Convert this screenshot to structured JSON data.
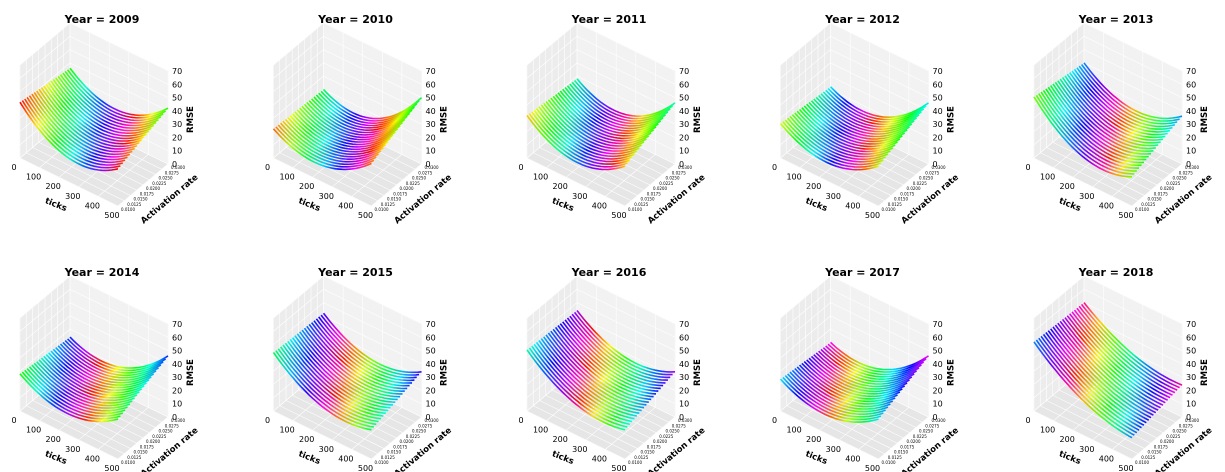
{
  "figure": {
    "rows": 2,
    "cols": 5
  },
  "chart_data": [
    {
      "type": "surface3d",
      "title": "Year = 2009",
      "xlabel": "ticks",
      "ylabel": "Activation rate",
      "zlabel": "RMSE",
      "xticks": [
        "0",
        "100",
        "200",
        "300",
        "400",
        "500"
      ],
      "yticks": [
        "0.0100",
        "0.0125",
        "0.0150",
        "0.0175",
        "0.0200",
        "0.0225",
        "0.0250",
        "0.0275",
        "0.0300"
      ],
      "zticks": [
        "0",
        "10",
        "20",
        "30",
        "40",
        "50",
        "60",
        "70"
      ],
      "xlim": [
        0,
        500
      ],
      "ylim": [
        0.01,
        0.03
      ],
      "zlim": [
        0,
        70
      ],
      "grid": true,
      "colormap": "hsv",
      "rmse_at_ticks_0": {
        "rate_0.0100": 42,
        "rate_0.0300": 36
      },
      "rmse_at_ticks_200": 20,
      "rmse_at_ticks_500": {
        "rate_0.0100": 28,
        "rate_0.0300": 42
      }
    },
    {
      "type": "surface3d",
      "title": "Year = 2010",
      "xlabel": "ticks",
      "ylabel": "Activation rate",
      "zlabel": "RMSE",
      "xticks": [
        "0",
        "100",
        "200",
        "300",
        "400",
        "500"
      ],
      "yticks": [
        "0.0100",
        "0.0125",
        "0.0150",
        "0.0175",
        "0.0200",
        "0.0225",
        "0.0250",
        "0.0275",
        "0.0300"
      ],
      "zticks": [
        "0",
        "10",
        "20",
        "30",
        "40",
        "50",
        "60",
        "70"
      ],
      "xlim": [
        0,
        500
      ],
      "ylim": [
        0.01,
        0.03
      ],
      "zlim": [
        0,
        70
      ],
      "grid": true,
      "colormap": "hsv",
      "rmse_at_ticks_0": {
        "rate_0.0100": 22,
        "rate_0.0300": 20
      },
      "rmse_at_ticks_200": 12,
      "rmse_at_ticks_500": {
        "rate_0.0100": 32,
        "rate_0.0300": 50
      }
    },
    {
      "type": "surface3d",
      "title": "Year = 2011",
      "xlabel": "ticks",
      "ylabel": "Activation rate",
      "zlabel": "RMSE",
      "xticks": [
        "0",
        "100",
        "200",
        "300",
        "400",
        "500"
      ],
      "yticks": [
        "0.0100",
        "0.0125",
        "0.0150",
        "0.0175",
        "0.0200",
        "0.0225",
        "0.0250",
        "0.0275",
        "0.0300"
      ],
      "zticks": [
        "0",
        "10",
        "20",
        "30",
        "40",
        "50",
        "60",
        "70"
      ],
      "xlim": [
        0,
        500
      ],
      "ylim": [
        0.01,
        0.03
      ],
      "zlim": [
        0,
        70
      ],
      "grid": true,
      "colormap": "hsv",
      "rmse_at_ticks_0": {
        "rate_0.0100": 32,
        "rate_0.0300": 28
      },
      "rmse_at_ticks_200": 16,
      "rmse_at_ticks_500": {
        "rate_0.0100": 30,
        "rate_0.0300": 46
      }
    },
    {
      "type": "surface3d",
      "title": "Year = 2012",
      "xlabel": "ticks",
      "ylabel": "Activation rate",
      "zlabel": "RMSE",
      "xticks": [
        "0",
        "100",
        "200",
        "300",
        "400",
        "500"
      ],
      "yticks": [
        "0.0100",
        "0.0125",
        "0.0150",
        "0.0175",
        "0.0200",
        "0.0225",
        "0.0250",
        "0.0275",
        "0.0300"
      ],
      "zticks": [
        "0",
        "10",
        "20",
        "30",
        "40",
        "50",
        "60",
        "70"
      ],
      "xlim": [
        0,
        500
      ],
      "ylim": [
        0.01,
        0.03
      ],
      "zlim": [
        0,
        70
      ],
      "grid": true,
      "colormap": "hsv",
      "rmse_at_ticks_0": {
        "rate_0.0100": 26,
        "rate_0.0300": 22
      },
      "rmse_at_ticks_200": 14,
      "rmse_at_ticks_500": {
        "rate_0.0100": 30,
        "rate_0.0300": 46
      }
    },
    {
      "type": "surface3d",
      "title": "Year = 2013",
      "xlabel": "ticks",
      "ylabel": "Activation rate",
      "zlabel": "RMSE",
      "xticks": [
        "0",
        "100",
        "200",
        "300",
        "400",
        "500"
      ],
      "yticks": [
        "0.0100",
        "0.0125",
        "0.0150",
        "0.0175",
        "0.0200",
        "0.0225",
        "0.0250",
        "0.0275",
        "0.0300"
      ],
      "zticks": [
        "0",
        "10",
        "20",
        "30",
        "40",
        "50",
        "60",
        "70"
      ],
      "xlim": [
        0,
        500
      ],
      "ylim": [
        0.01,
        0.03
      ],
      "zlim": [
        0,
        70
      ],
      "grid": true,
      "colormap": "hsv",
      "rmse_at_ticks_0": {
        "rate_0.0100": 46,
        "rate_0.0300": 40
      },
      "rmse_at_ticks_200": 22,
      "rmse_at_ticks_500": {
        "rate_0.0100": 22,
        "rate_0.0300": 36
      }
    },
    {
      "type": "surface3d",
      "title": "Year = 2014",
      "xlabel": "ticks",
      "ylabel": "Activation rate",
      "zlabel": "RMSE",
      "xticks": [
        "0",
        "100",
        "200",
        "300",
        "400",
        "500"
      ],
      "yticks": [
        "0.0100",
        "0.0125",
        "0.0150",
        "0.0175",
        "0.0200",
        "0.0225",
        "0.0250",
        "0.0275",
        "0.0300"
      ],
      "zticks": [
        "0",
        "10",
        "20",
        "30",
        "40",
        "50",
        "60",
        "70"
      ],
      "xlim": [
        0,
        500
      ],
      "ylim": [
        0.01,
        0.03
      ],
      "zlim": [
        0,
        70
      ],
      "grid": true,
      "colormap": "hsv",
      "rmse_at_ticks_0": {
        "rate_0.0100": 28,
        "rate_0.0300": 24
      },
      "rmse_at_ticks_200": 16,
      "rmse_at_ticks_500": {
        "rate_0.0100": 30,
        "rate_0.0300": 46
      }
    },
    {
      "type": "surface3d",
      "title": "Year = 2015",
      "xlabel": "ticks",
      "ylabel": "Activation rate",
      "zlabel": "RMSE",
      "xticks": [
        "0",
        "100",
        "200",
        "300",
        "400",
        "500"
      ],
      "yticks": [
        "0.0100",
        "0.0125",
        "0.0150",
        "0.0175",
        "0.0200",
        "0.0225",
        "0.0250",
        "0.0275",
        "0.0300"
      ],
      "zticks": [
        "0",
        "10",
        "20",
        "30",
        "40",
        "50",
        "60",
        "70"
      ],
      "xlim": [
        0,
        500
      ],
      "ylim": [
        0.01,
        0.03
      ],
      "zlim": [
        0,
        70
      ],
      "grid": true,
      "colormap": "hsv",
      "rmse_at_ticks_0": {
        "rate_0.0100": 44,
        "rate_0.0300": 42
      },
      "rmse_at_ticks_200": 24,
      "rmse_at_ticks_500": {
        "rate_0.0100": 22,
        "rate_0.0300": 34
      }
    },
    {
      "type": "surface3d",
      "title": "Year = 2016",
      "xlabel": "ticks",
      "ylabel": "Activation rate",
      "zlabel": "RMSE",
      "xticks": [
        "0",
        "100",
        "200",
        "300",
        "400",
        "500"
      ],
      "yticks": [
        "0.0100",
        "0.0125",
        "0.0150",
        "0.0175",
        "0.0200",
        "0.0225",
        "0.0250",
        "0.0275",
        "0.0300"
      ],
      "zticks": [
        "0",
        "10",
        "20",
        "30",
        "40",
        "50",
        "60",
        "70"
      ],
      "xlim": [
        0,
        500
      ],
      "ylim": [
        0.01,
        0.03
      ],
      "zlim": [
        0,
        70
      ],
      "grid": true,
      "colormap": "hsv",
      "rmse_at_ticks_0": {
        "rate_0.0100": 46,
        "rate_0.0300": 44
      },
      "rmse_at_ticks_200": 26,
      "rmse_at_ticks_500": {
        "rate_0.0100": 22,
        "rate_0.0300": 34
      }
    },
    {
      "type": "surface3d",
      "title": "Year = 2017",
      "xlabel": "ticks",
      "ylabel": "Activation rate",
      "zlabel": "RMSE",
      "xticks": [
        "0",
        "100",
        "200",
        "300",
        "400",
        "500"
      ],
      "yticks": [
        "0.0100",
        "0.0125",
        "0.0150",
        "0.0175",
        "0.0200",
        "0.0225",
        "0.0250",
        "0.0275",
        "0.0300"
      ],
      "zticks": [
        "0",
        "10",
        "20",
        "30",
        "40",
        "50",
        "60",
        "70"
      ],
      "xlim": [
        0,
        500
      ],
      "ylim": [
        0.01,
        0.03
      ],
      "zlim": [
        0,
        70
      ],
      "grid": true,
      "colormap": "hsv",
      "rmse_at_ticks_0": {
        "rate_0.0100": 24,
        "rate_0.0300": 20
      },
      "rmse_at_ticks_200": 14,
      "rmse_at_ticks_500": {
        "rate_0.0100": 30,
        "rate_0.0300": 46
      }
    },
    {
      "type": "surface3d",
      "title": "Year = 2018",
      "xlabel": "ticks",
      "ylabel": "Activation rate",
      "zlabel": "RMSE",
      "xticks": [
        "0",
        "100",
        "200",
        "300",
        "400",
        "500"
      ],
      "yticks": [
        "0.0100",
        "0.0125",
        "0.0150",
        "0.0175",
        "0.0200",
        "0.0225",
        "0.0250",
        "0.0275",
        "0.0300"
      ],
      "zticks": [
        "0",
        "10",
        "20",
        "30",
        "40",
        "50",
        "60",
        "70"
      ],
      "xlim": [
        0,
        500
      ],
      "ylim": [
        0.01,
        0.03
      ],
      "zlim": [
        0,
        70
      ],
      "grid": true,
      "colormap": "hsv",
      "rmse_at_ticks_0": {
        "rate_0.0100": 52,
        "rate_0.0300": 50
      },
      "rmse_at_ticks_200": 30,
      "rmse_at_ticks_500": {
        "rate_0.0100": 16,
        "rate_0.0300": 24
      }
    }
  ]
}
